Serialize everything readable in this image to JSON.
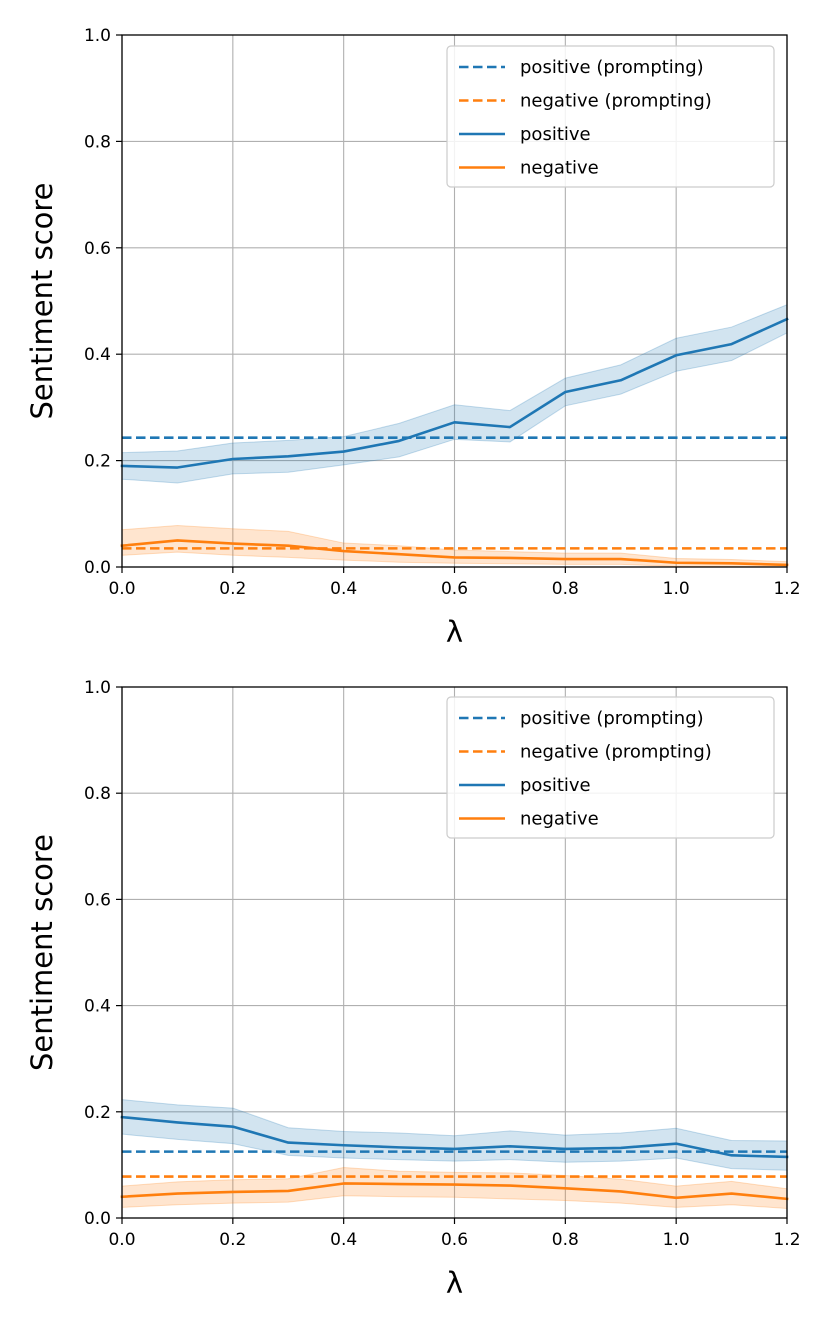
{
  "colors": {
    "positive": "#1f77b4",
    "negative": "#ff7f0e",
    "grid": "#b0b0b0",
    "axes": "#000000",
    "legend_border": "#cccccc"
  },
  "chart_data": [
    {
      "type": "line",
      "xlabel": "λ",
      "ylabel": "Sentiment score",
      "xlim": [
        0.0,
        1.2
      ],
      "ylim": [
        0.0,
        1.0
      ],
      "xticks": [
        "0.0",
        "0.2",
        "0.4",
        "0.6",
        "0.8",
        "1.0",
        "1.2"
      ],
      "yticks": [
        "0.0",
        "0.2",
        "0.4",
        "0.6",
        "0.8",
        "1.0"
      ],
      "grid": true,
      "legend_position": "top-right",
      "x": [
        0.0,
        0.1,
        0.2,
        0.3,
        0.4,
        0.5,
        0.6,
        0.7,
        0.8,
        0.9,
        1.0,
        1.1,
        1.2
      ],
      "series": [
        {
          "name": "positive (prompting)",
          "style": "dashed",
          "color_key": "positive",
          "constant": 0.243
        },
        {
          "name": "negative (prompting)",
          "style": "dashed",
          "color_key": "negative",
          "constant": 0.035
        },
        {
          "name": "positive",
          "style": "solid",
          "color_key": "positive",
          "values": [
            0.19,
            0.187,
            0.203,
            0.208,
            0.217,
            0.237,
            0.272,
            0.263,
            0.329,
            0.351,
            0.398,
            0.419,
            0.466
          ],
          "lower": [
            0.165,
            0.158,
            0.175,
            0.178,
            0.192,
            0.207,
            0.24,
            0.235,
            0.303,
            0.325,
            0.368,
            0.388,
            0.44
          ],
          "upper": [
            0.215,
            0.218,
            0.233,
            0.238,
            0.245,
            0.27,
            0.305,
            0.294,
            0.355,
            0.38,
            0.43,
            0.451,
            0.493
          ]
        },
        {
          "name": "negative",
          "style": "solid",
          "color_key": "negative",
          "values": [
            0.04,
            0.05,
            0.044,
            0.04,
            0.03,
            0.024,
            0.018,
            0.017,
            0.015,
            0.015,
            0.008,
            0.007,
            0.004
          ],
          "lower": [
            0.022,
            0.028,
            0.022,
            0.018,
            0.013,
            0.009,
            0.007,
            0.006,
            0.005,
            0.005,
            0.001,
            0.001,
            0.0
          ],
          "upper": [
            0.07,
            0.078,
            0.072,
            0.067,
            0.045,
            0.04,
            0.032,
            0.029,
            0.026,
            0.026,
            0.016,
            0.014,
            0.01
          ]
        }
      ]
    },
    {
      "type": "line",
      "xlabel": "λ",
      "ylabel": "Sentiment score",
      "xlim": [
        0.0,
        1.2
      ],
      "ylim": [
        0.0,
        1.0
      ],
      "xticks": [
        "0.0",
        "0.2",
        "0.4",
        "0.6",
        "0.8",
        "1.0",
        "1.2"
      ],
      "yticks": [
        "0.0",
        "0.2",
        "0.4",
        "0.6",
        "0.8",
        "1.0"
      ],
      "grid": true,
      "legend_position": "top-right",
      "x": [
        0.0,
        0.1,
        0.2,
        0.3,
        0.4,
        0.5,
        0.6,
        0.7,
        0.8,
        0.9,
        1.0,
        1.1,
        1.2
      ],
      "series": [
        {
          "name": "positive (prompting)",
          "style": "dashed",
          "color_key": "positive",
          "constant": 0.125
        },
        {
          "name": "negative (prompting)",
          "style": "dashed",
          "color_key": "negative",
          "constant": 0.078
        },
        {
          "name": "positive",
          "style": "solid",
          "color_key": "positive",
          "values": [
            0.19,
            0.18,
            0.172,
            0.142,
            0.137,
            0.133,
            0.13,
            0.135,
            0.13,
            0.132,
            0.14,
            0.118,
            0.115
          ],
          "lower": [
            0.158,
            0.148,
            0.14,
            0.118,
            0.113,
            0.11,
            0.107,
            0.11,
            0.105,
            0.107,
            0.113,
            0.093,
            0.09
          ],
          "upper": [
            0.223,
            0.213,
            0.207,
            0.17,
            0.163,
            0.16,
            0.155,
            0.164,
            0.156,
            0.16,
            0.169,
            0.146,
            0.145
          ]
        },
        {
          "name": "negative",
          "style": "solid",
          "color_key": "negative",
          "values": [
            0.04,
            0.046,
            0.049,
            0.051,
            0.065,
            0.064,
            0.063,
            0.061,
            0.056,
            0.05,
            0.038,
            0.046,
            0.036
          ],
          "lower": [
            0.02,
            0.025,
            0.028,
            0.03,
            0.042,
            0.04,
            0.039,
            0.036,
            0.033,
            0.028,
            0.02,
            0.025,
            0.018
          ],
          "upper": [
            0.06,
            0.068,
            0.072,
            0.074,
            0.095,
            0.088,
            0.086,
            0.085,
            0.08,
            0.073,
            0.06,
            0.069,
            0.055
          ]
        }
      ]
    }
  ]
}
